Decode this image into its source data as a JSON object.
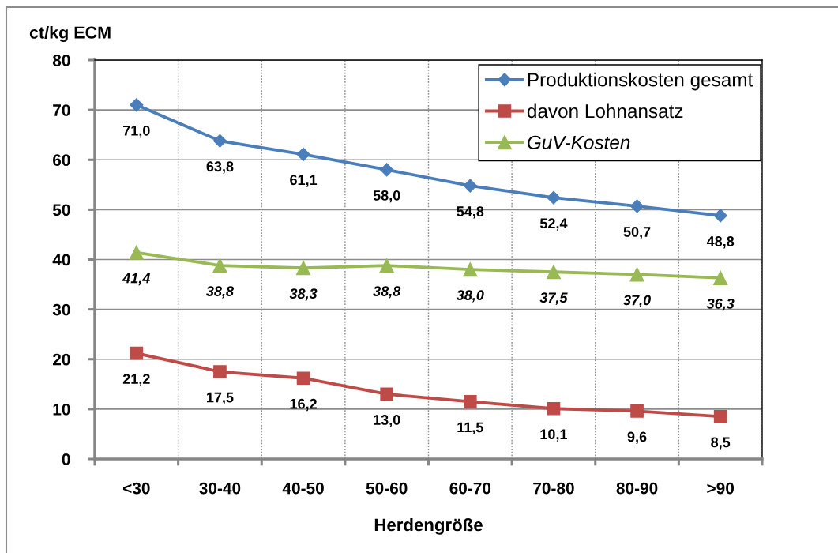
{
  "chart_data": {
    "type": "line",
    "xlabel": "Herdengröße",
    "ylabel": "ct/kg ECM",
    "categories": [
      "<30",
      "30-40",
      "40-50",
      "50-60",
      "60-70",
      "70-80",
      "80-90",
      ">90"
    ],
    "series": [
      {
        "name": "Produktionskosten gesamt",
        "color": "#4a7ebb",
        "marker": "diamond",
        "values": [
          71.0,
          63.8,
          61.1,
          58.0,
          54.8,
          52.4,
          50.7,
          48.8
        ],
        "value_labels": [
          "71,0",
          "63,8",
          "61,1",
          "58,0",
          "54,8",
          "52,4",
          "50,7",
          "48,8"
        ]
      },
      {
        "name": "davon Lohnansatz",
        "color": "#be4b48",
        "marker": "square",
        "values": [
          21.2,
          17.5,
          16.2,
          13.0,
          11.5,
          10.1,
          9.6,
          8.5
        ],
        "value_labels": [
          "21,2",
          "17,5",
          "16,2",
          "13,0",
          "11,5",
          "10,1",
          "9,6",
          "8,5"
        ]
      },
      {
        "name": "GuV-Kosten",
        "color": "#98b954",
        "marker": "triangle",
        "values": [
          41.4,
          38.8,
          38.3,
          38.8,
          38.0,
          37.5,
          37.0,
          36.3
        ],
        "value_labels": [
          "41,4",
          "38,8",
          "38,3",
          "38,8",
          "38,0",
          "37,5",
          "37,0",
          "36,3"
        ]
      }
    ],
    "ylim": [
      0,
      80
    ],
    "yticks": [
      0,
      10,
      20,
      30,
      40,
      50,
      60,
      70,
      80
    ],
    "grid": true,
    "legend": "top right",
    "line_style": "solid"
  }
}
